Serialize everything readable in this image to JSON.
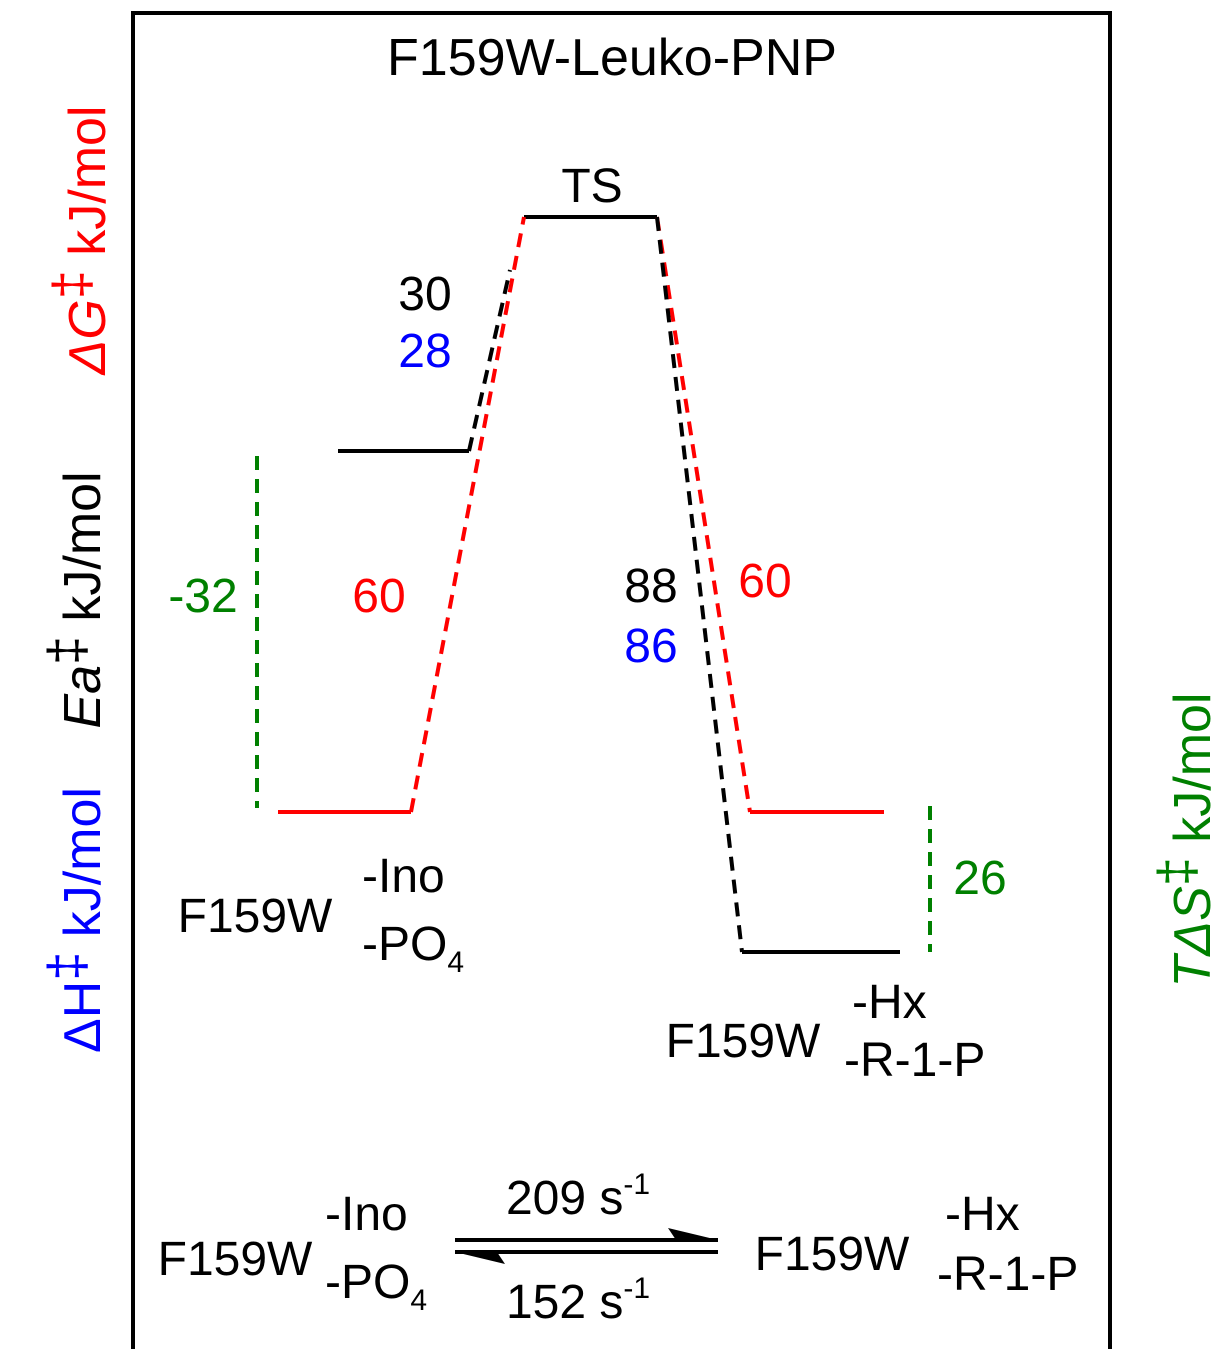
{
  "title": "F159W-Leuko-PNP",
  "colors": {
    "black": "#000000",
    "red": "#ff0000",
    "blue": "#0000ff",
    "green": "#008000"
  },
  "axis_labels": {
    "delta_g": {
      "symbol": "ΔG",
      "dagger": "‡",
      "unit": " kJ/mol"
    },
    "ea": {
      "symbol": "Ea",
      "dagger": "‡",
      "unit": " kJ/mol"
    },
    "delta_h": {
      "symbol": "ΔH",
      "dagger": "‡",
      "unit": " kJ/mol"
    },
    "t_delta_s": {
      "symbol": "TΔS",
      "dagger": "‡",
      "unit": " kJ/mol"
    }
  },
  "ts_label": "TS",
  "values": {
    "ea_forward": "30",
    "dh_forward": "28",
    "dg_forward": "60",
    "tds_forward": "-32",
    "ea_reverse": "88",
    "dh_reverse": "86",
    "dg_reverse": "60",
    "tds_reverse": "26"
  },
  "species": {
    "reactant": {
      "name": "F159W",
      "top": "-Ino",
      "bottom": "-PO",
      "bottom_sub": "4"
    },
    "product": {
      "name": "F159W",
      "top": "-Hx",
      "bottom": "-R-1-P"
    }
  },
  "equilibrium": {
    "forward_rate": "209 s",
    "forward_exp": "-1",
    "reverse_rate": "152 s",
    "reverse_exp": "-1"
  }
}
